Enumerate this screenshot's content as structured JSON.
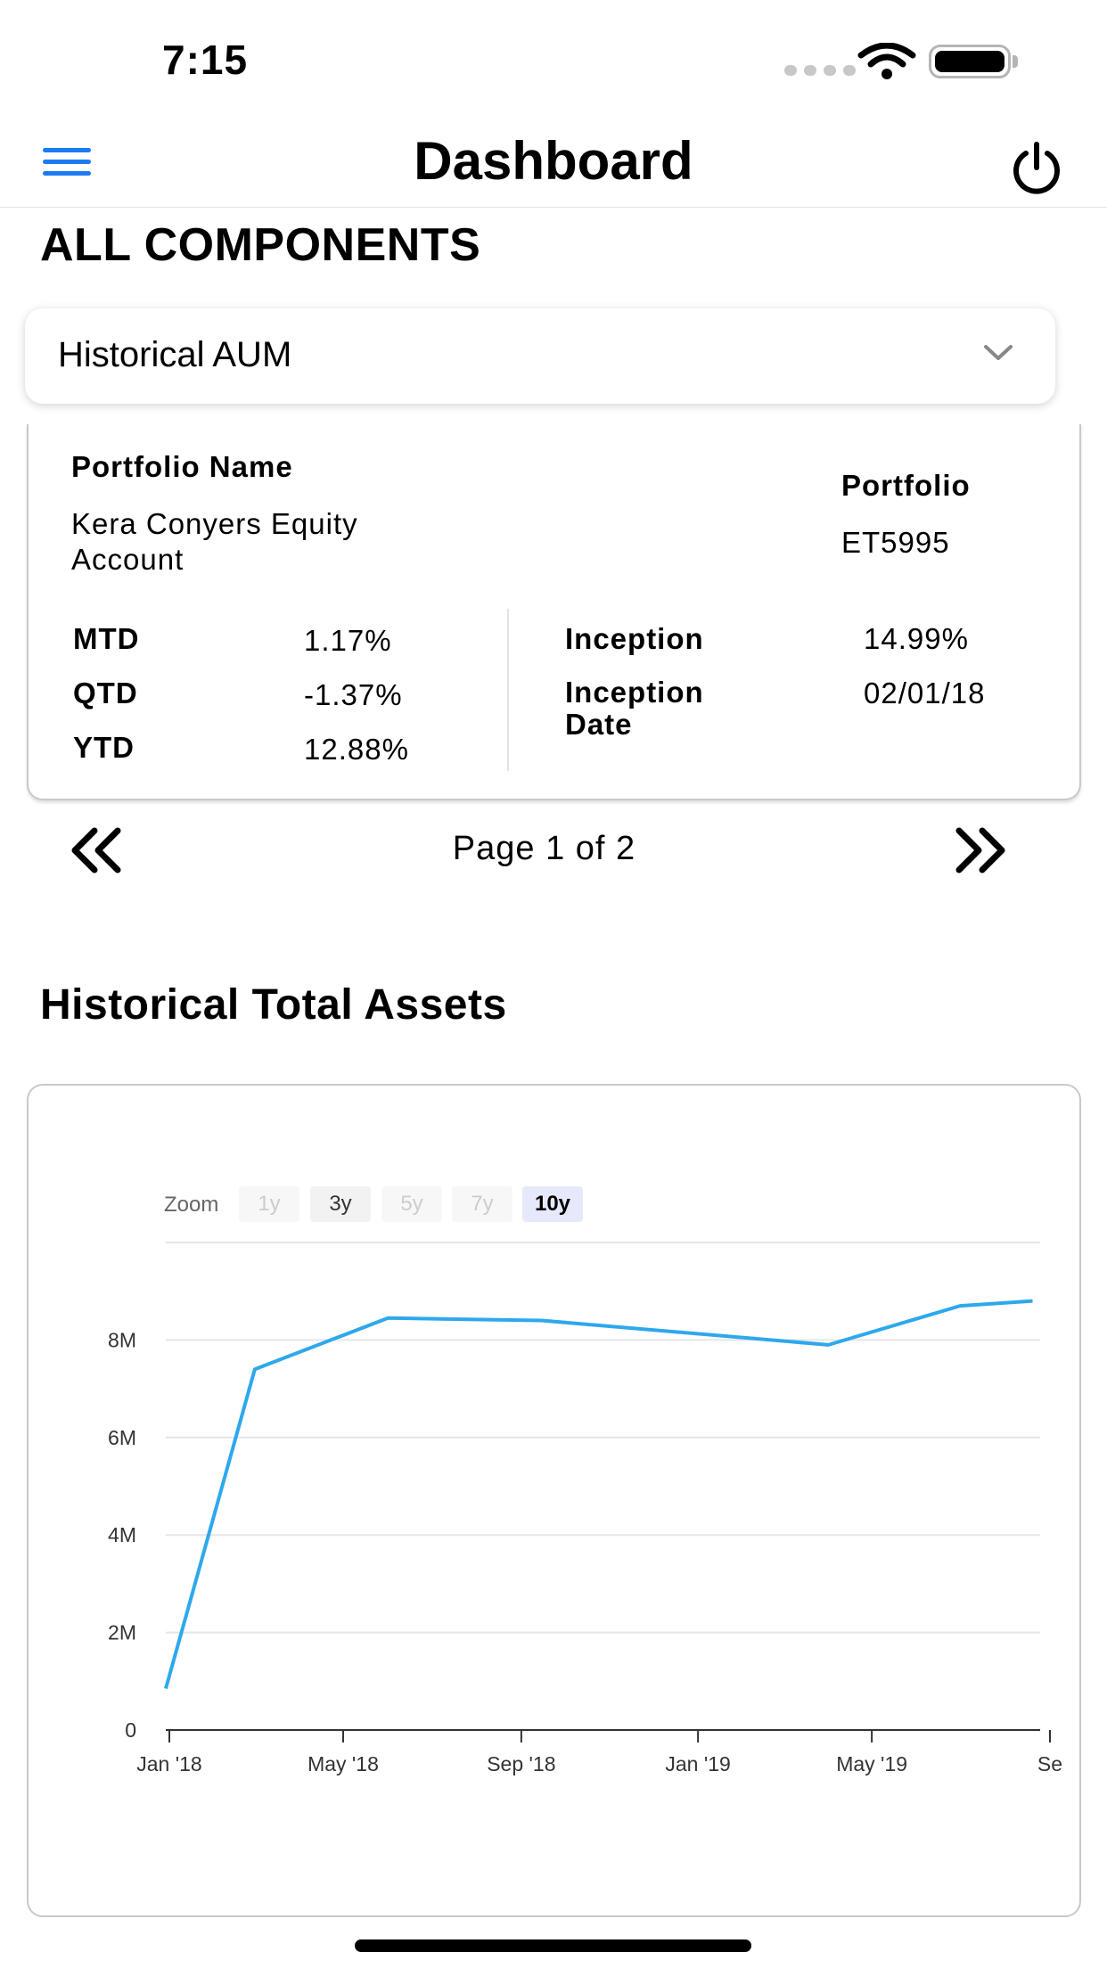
{
  "status_bar": {
    "time": "7:15"
  },
  "header": {
    "title": "Dashboard",
    "menu_icon": "hamburger-menu-icon",
    "power_icon": "power-icon",
    "accent": "#1b7cf2"
  },
  "section_title": "ALL COMPONENTS",
  "dropdown": {
    "selected": "Historical AUM"
  },
  "portfolio_card": {
    "name_label": "Portfolio Name",
    "name_value": "Kera Conyers Equity Account",
    "portfolio_label": "Portfolio",
    "portfolio_value": "ET5995",
    "mtd_label": "MTD",
    "mtd_value": "1.17%",
    "qtd_label": "QTD",
    "qtd_value": "-1.37%",
    "ytd_label": "YTD",
    "ytd_value": "12.88%",
    "inception_label": "Inception",
    "inception_value": "14.99%",
    "inception_date_label": "Inception Date",
    "inception_date_value": "02/01/18"
  },
  "pager": {
    "text": "Page 1 of 2"
  },
  "chart_title": "Historical Total Assets",
  "zoom": {
    "label": "Zoom",
    "options": [
      "1y",
      "3y",
      "5y",
      "7y",
      "10y"
    ],
    "selected": "10y"
  },
  "chart_data": {
    "type": "line",
    "title": "Historical Total Assets",
    "x_ticks": [
      "Jan '18",
      "May '18",
      "Sep '18",
      "Jan '19",
      "May '19",
      "Se"
    ],
    "y_ticks": [
      "0",
      "2M",
      "4M",
      "6M",
      "8M"
    ],
    "ylim": [
      0,
      10000000
    ],
    "grid": true,
    "color": "#2ea8ec",
    "series": [
      {
        "x": [
          "2017-12-28",
          "2018-03-01",
          "2018-06-01",
          "2018-09-15",
          "2019-04-01",
          "2019-07-01",
          "2019-08-20"
        ],
        "y": [
          850000,
          7400000,
          8450000,
          8400000,
          7900000,
          8700000,
          8800000
        ]
      }
    ]
  }
}
